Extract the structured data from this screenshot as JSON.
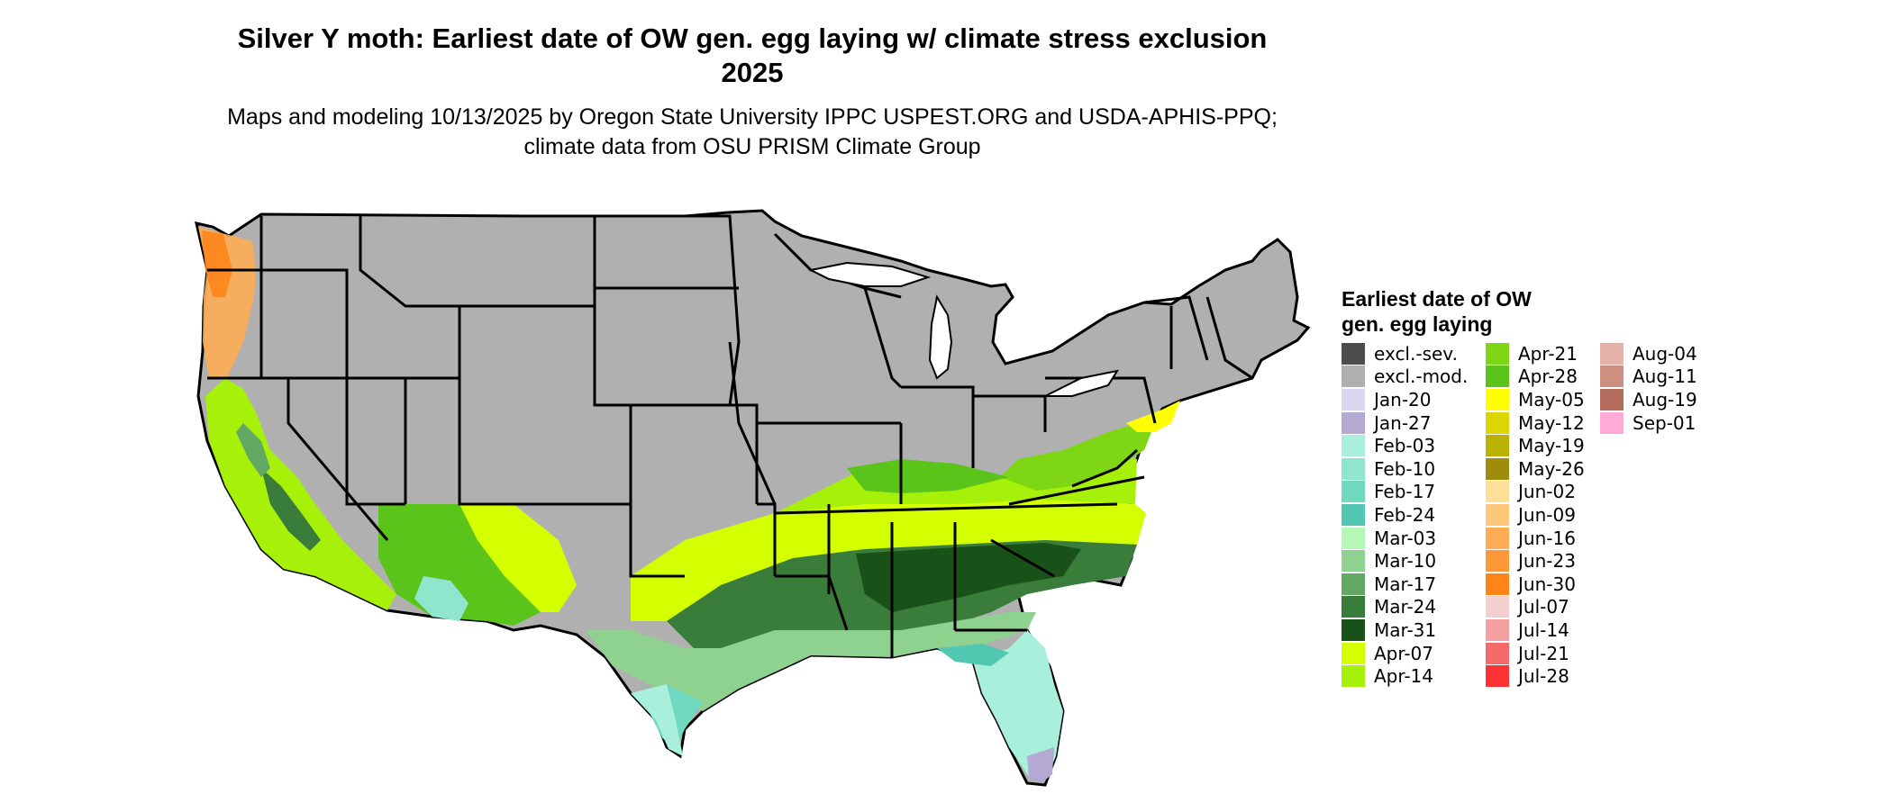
{
  "header": {
    "title": "Silver Y moth: Earliest date of OW gen. egg laying w/ climate stress exclusion 2025",
    "subtitle": "Maps and modeling 10/13/2025 by Oregon State University IPPC USPEST.ORG and USDA-APHIS-PPQ; climate data from OSU PRISM Climate Group"
  },
  "legend": {
    "title": "Earliest date of OW gen. egg laying",
    "items": [
      {
        "label": "excl.-sev.",
        "color": "#4d4d4d"
      },
      {
        "label": "excl.-mod.",
        "color": "#b0b0b0"
      },
      {
        "label": "Jan-20",
        "color": "#dcd6ee"
      },
      {
        "label": "Jan-27",
        "color": "#b3a9d3"
      },
      {
        "label": "Feb-03",
        "color": "#a9f0dc"
      },
      {
        "label": "Feb-10",
        "color": "#8fe6cc"
      },
      {
        "label": "Feb-17",
        "color": "#6fd9c0"
      },
      {
        "label": "Feb-24",
        "color": "#52c7b1"
      },
      {
        "label": "Mar-03",
        "color": "#b5f7b8"
      },
      {
        "label": "Mar-10",
        "color": "#8fd18f"
      },
      {
        "label": "Mar-17",
        "color": "#62a862"
      },
      {
        "label": "Mar-24",
        "color": "#3a7d3a"
      },
      {
        "label": "Mar-31",
        "color": "#195219"
      },
      {
        "label": "Apr-07",
        "color": "#d4ff00"
      },
      {
        "label": "Apr-14",
        "color": "#a6f00a"
      },
      {
        "label": "Apr-21",
        "color": "#7fd614"
      },
      {
        "label": "Apr-28",
        "color": "#5bc41a"
      },
      {
        "label": "May-05",
        "color": "#ffff00"
      },
      {
        "label": "May-12",
        "color": "#dcd600"
      },
      {
        "label": "May-19",
        "color": "#bcb000"
      },
      {
        "label": "May-26",
        "color": "#9e8c0a"
      },
      {
        "label": "Jun-02",
        "color": "#ffe099"
      },
      {
        "label": "Jun-09",
        "color": "#ffc77a"
      },
      {
        "label": "Jun-16",
        "color": "#ffad55"
      },
      {
        "label": "Jun-23",
        "color": "#ff9838"
      },
      {
        "label": "Jun-30",
        "color": "#ff8316"
      },
      {
        "label": "Jul-07",
        "color": "#f4cfcf"
      },
      {
        "label": "Jul-14",
        "color": "#f5a0a0"
      },
      {
        "label": "Jul-21",
        "color": "#f76a6a"
      },
      {
        "label": "Jul-28",
        "color": "#ff3333"
      },
      {
        "label": "Aug-04",
        "color": "#e6b2a8"
      },
      {
        "label": "Aug-11",
        "color": "#cc8f80"
      },
      {
        "label": "Aug-19",
        "color": "#b36b5c"
      },
      {
        "label": "Sep-01",
        "color": "#ffaad8"
      }
    ]
  }
}
